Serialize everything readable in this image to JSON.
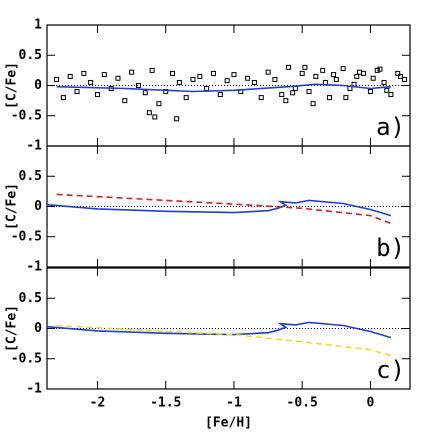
{
  "chart_data": [
    {
      "type": "scatter",
      "label": "a)",
      "ylabel": "[C/Fe]",
      "xlim": [
        -2.37,
        0.29
      ],
      "xticks": [
        -2,
        -1.5,
        -1,
        -0.5,
        0
      ],
      "ylim": [
        -1,
        1
      ],
      "yticks": [
        -1,
        -0.5,
        0,
        0.5,
        1
      ],
      "hline": 0,
      "points": {
        "color": "#000",
        "x": [
          -2.3,
          -2.25,
          -2.2,
          -2.15,
          -2.1,
          -2.05,
          -2.0,
          -1.95,
          -1.9,
          -1.85,
          -1.8,
          -1.75,
          -1.7,
          -1.65,
          -1.6,
          -1.55,
          -1.5,
          -1.45,
          -1.4,
          -1.35,
          -1.3,
          -1.25,
          -1.2,
          -1.15,
          -1.1,
          -1.05,
          -1.0,
          -0.95,
          -0.9,
          -0.85,
          -0.8,
          -0.75,
          -0.7,
          -0.65,
          -0.6,
          -0.55,
          -0.5,
          -0.45,
          -0.4,
          -0.35,
          -0.3,
          -0.25,
          -0.2,
          -0.15,
          -0.1,
          -0.05,
          0.0,
          0.05,
          0.1,
          0.15,
          0.2,
          0.25,
          -0.62,
          -0.48,
          -0.33,
          -0.18,
          -0.08,
          0.02,
          0.12,
          -0.42,
          -0.27,
          -0.12,
          0.07,
          0.22,
          -0.57,
          -1.42,
          -1.62,
          -1.58
        ],
        "y": [
          0.1,
          -0.2,
          0.15,
          -0.1,
          0.2,
          0.05,
          -0.15,
          0.18,
          -0.05,
          0.12,
          -0.25,
          0.22,
          0.0,
          -0.12,
          0.25,
          -0.3,
          -0.1,
          0.2,
          0.05,
          -0.2,
          0.1,
          0.15,
          -0.05,
          0.2,
          -0.15,
          0.08,
          0.18,
          -0.1,
          0.12,
          0.05,
          -0.2,
          0.22,
          0.1,
          -0.15,
          0.3,
          -0.05,
          0.2,
          -0.1,
          0.15,
          0.25,
          -0.2,
          0.1,
          0.28,
          -0.05,
          0.15,
          0.2,
          -0.1,
          0.25,
          0.05,
          -0.15,
          0.2,
          0.1,
          -0.25,
          0.3,
          0.05,
          -0.2,
          0.22,
          0.12,
          -0.08,
          -0.3,
          0.18,
          0.02,
          0.27,
          0.15,
          -0.12,
          -0.55,
          -0.45,
          -0.52
        ]
      },
      "series": [
        {
          "color": "#1f3fcf",
          "style": "solid",
          "x": [
            -2.3,
            -1.8,
            -1.3,
            -1.0,
            -0.6,
            -0.4,
            -0.2,
            0.0,
            0.15
          ],
          "y": [
            -0.02,
            -0.05,
            -0.1,
            -0.08,
            -0.02,
            0.02,
            0.0,
            -0.05,
            -0.02
          ]
        }
      ]
    },
    {
      "type": "line",
      "label": "b)",
      "ylabel": "[C/Fe]",
      "xlim": [
        -2.37,
        0.29
      ],
      "xticks": [
        -2,
        -1.5,
        -1,
        -0.5,
        0
      ],
      "ylim": [
        -1,
        1
      ],
      "yticks": [
        -1,
        -0.5,
        0,
        0.5
      ],
      "hline": 0,
      "series": [
        {
          "color": "#1f3fcf",
          "style": "solid",
          "x": [
            -2.37,
            -2.0,
            -1.5,
            -1.0,
            -0.75,
            -0.68,
            -0.62,
            -0.66,
            -0.55,
            -0.45,
            -0.2,
            0.0,
            0.15
          ],
          "y": [
            0.03,
            -0.04,
            -0.08,
            -0.1,
            -0.07,
            -0.03,
            0.02,
            0.08,
            0.06,
            0.1,
            0.05,
            -0.05,
            -0.15
          ]
        },
        {
          "color": "#d42020",
          "style": "dashed",
          "x": [
            -2.3,
            -1.5,
            -1.0,
            -0.5,
            0.0,
            0.15
          ],
          "y": [
            0.2,
            0.1,
            0.04,
            -0.03,
            -0.15,
            -0.28
          ]
        }
      ]
    },
    {
      "type": "line",
      "label": "c)",
      "ylabel": "[C/Fe]",
      "xlabel": "[Fe/H]",
      "xlim": [
        -2.37,
        0.29
      ],
      "xticks": [
        -2,
        -1.5,
        -1,
        -0.5,
        0
      ],
      "ylim": [
        -1,
        1
      ],
      "yticks": [
        -1,
        -0.5,
        0,
        0.5
      ],
      "hline": 0,
      "series": [
        {
          "color": "#1f3fcf",
          "style": "solid",
          "x": [
            -2.37,
            -2.0,
            -1.5,
            -1.0,
            -0.75,
            -0.68,
            -0.62,
            -0.66,
            -0.55,
            -0.45,
            -0.2,
            0.0,
            0.15
          ],
          "y": [
            0.03,
            -0.04,
            -0.08,
            -0.1,
            -0.07,
            -0.03,
            0.02,
            0.08,
            0.06,
            0.1,
            0.05,
            -0.05,
            -0.15
          ]
        },
        {
          "color": "#e8e020",
          "style": "dashed",
          "x": [
            -2.3,
            -1.5,
            -1.0,
            -0.5,
            0.0,
            0.15
          ],
          "y": [
            0.05,
            -0.05,
            -0.1,
            -0.22,
            -0.35,
            -0.45
          ]
        }
      ]
    }
  ]
}
